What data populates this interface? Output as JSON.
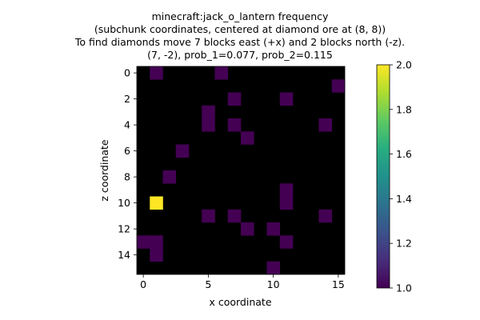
{
  "chart_data": {
    "type": "heatmap",
    "title_lines": [
      "minecraft:jack_o_lantern frequency",
      "(subchunk coordinates, centered at diamond ore at (8, 8))",
      "To find diamonds move 7 blocks east (+x) and 2 blocks north (-z).",
      "(7, -2), prob_1=0.077, prob_2=0.115"
    ],
    "xlabel": "x coordinate",
    "ylabel": "z coordinate",
    "grid_size": 16,
    "background_value": 0,
    "background_color": "#000000",
    "x_ticks": [
      0,
      5,
      10,
      15
    ],
    "y_ticks": [
      0,
      2,
      4,
      6,
      8,
      10,
      12,
      14
    ],
    "cells": [
      {
        "x": 1,
        "z": 0,
        "value": 1
      },
      {
        "x": 6,
        "z": 0,
        "value": 1
      },
      {
        "x": 15,
        "z": 1,
        "value": 1
      },
      {
        "x": 7,
        "z": 2,
        "value": 1
      },
      {
        "x": 11,
        "z": 2,
        "value": 1
      },
      {
        "x": 5,
        "z": 3,
        "value": 1
      },
      {
        "x": 5,
        "z": 4,
        "value": 1
      },
      {
        "x": 7,
        "z": 4,
        "value": 1
      },
      {
        "x": 14,
        "z": 4,
        "value": 1
      },
      {
        "x": 8,
        "z": 5,
        "value": 1
      },
      {
        "x": 3,
        "z": 6,
        "value": 1
      },
      {
        "x": 2,
        "z": 8,
        "value": 1
      },
      {
        "x": 11,
        "z": 9,
        "value": 1
      },
      {
        "x": 1,
        "z": 10,
        "value": 2
      },
      {
        "x": 11,
        "z": 10,
        "value": 1
      },
      {
        "x": 5,
        "z": 11,
        "value": 1
      },
      {
        "x": 7,
        "z": 11,
        "value": 1
      },
      {
        "x": 14,
        "z": 11,
        "value": 1
      },
      {
        "x": 8,
        "z": 12,
        "value": 1
      },
      {
        "x": 10,
        "z": 12,
        "value": 1
      },
      {
        "x": 0,
        "z": 13,
        "value": 1
      },
      {
        "x": 1,
        "z": 13,
        "value": 1
      },
      {
        "x": 11,
        "z": 13,
        "value": 1
      },
      {
        "x": 1,
        "z": 14,
        "value": 1
      },
      {
        "x": 10,
        "z": 15,
        "value": 1
      }
    ],
    "colorbar": {
      "colormap": "viridis",
      "range": [
        1.0,
        2.0
      ],
      "ticks": [
        1.0,
        1.2,
        1.4,
        1.6,
        1.8,
        2.0
      ],
      "tick_labels": [
        "1.0",
        "1.2",
        "1.4",
        "1.6",
        "1.8",
        "2.0"
      ]
    }
  }
}
